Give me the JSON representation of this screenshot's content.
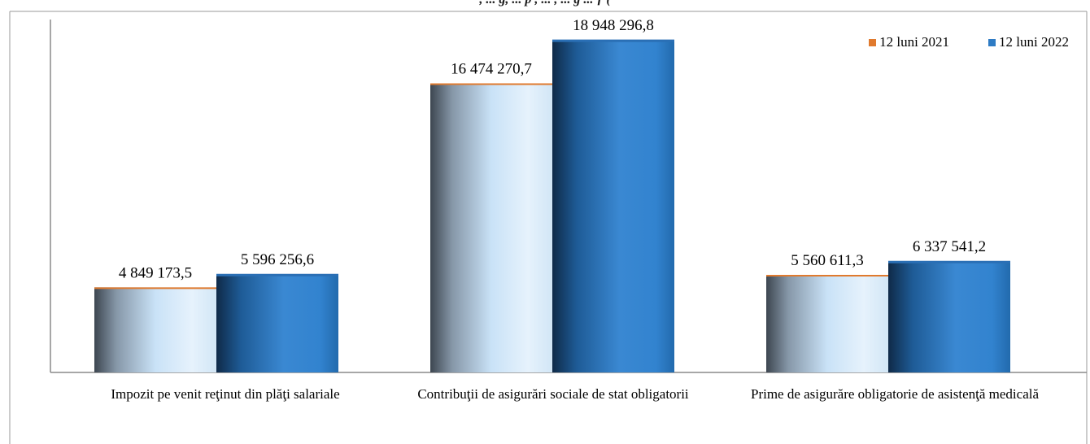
{
  "header_caption": ", ... g, ... p , ... , ... g ... ƒ (",
  "chart_data": {
    "type": "bar",
    "categories": [
      "Impozit  pe venit reţinut din plăţi salariale",
      "Contribuţii  de asigurări sociale de stat obligatorii",
      "Prime de asigurăre obligatorie de asistenţă medicală"
    ],
    "series": [
      {
        "name": "12 luni 2021",
        "values": [
          4849173.5,
          16474270.7,
          5560611.3
        ],
        "labels": [
          "4 849 173,5",
          "16 474 270,7",
          "5 560 611,3"
        ],
        "color": "#d0e6f8",
        "edge": "#e07a2e"
      },
      {
        "name": "12 luni  2022",
        "values": [
          5596256.6,
          18948296.8,
          6337541.2
        ],
        "labels": [
          "5 596 256,6",
          "18 948 296,8",
          "6 337 541,2"
        ],
        "color": "#2e7bc4",
        "edge": "#1f5f9e"
      }
    ],
    "ylim": [
      0,
      20000000
    ],
    "grid": false,
    "legend": "top-right",
    "xlabel": "",
    "ylabel": ""
  }
}
